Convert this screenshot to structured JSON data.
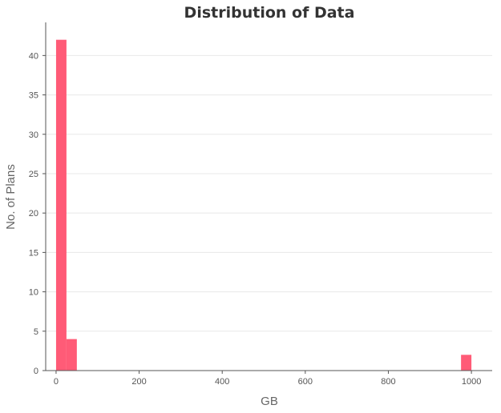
{
  "chart_data": {
    "type": "bar",
    "title": "Distribution of Data",
    "xlabel": "GB",
    "ylabel": "No. of Plans",
    "xlim": [
      -25,
      1050
    ],
    "ylim": [
      0,
      44
    ],
    "x_ticks": [
      0,
      200,
      400,
      600,
      800,
      1000
    ],
    "y_ticks": [
      0,
      5,
      10,
      15,
      20,
      25,
      30,
      35,
      40
    ],
    "grid": "horizontal",
    "bar_color": "#ff5b77",
    "bins": [
      {
        "start": 0,
        "end": 25,
        "count": 42
      },
      {
        "start": 25,
        "end": 50,
        "count": 4
      },
      {
        "start": 975,
        "end": 1000,
        "count": 2
      }
    ]
  }
}
